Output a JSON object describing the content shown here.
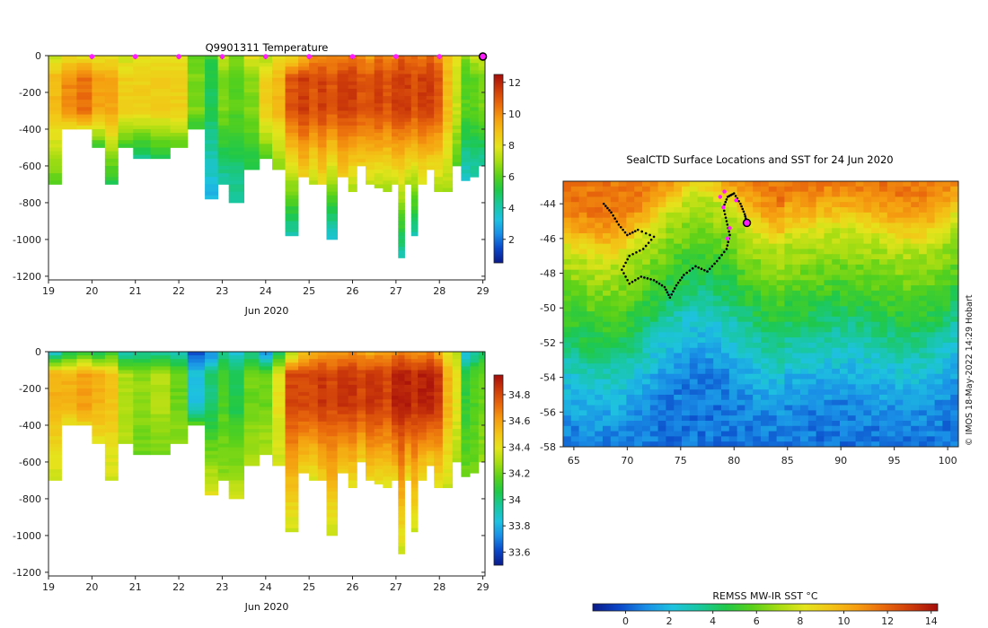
{
  "colors": {
    "jet": [
      "#0a1a8a",
      "#0a47c8",
      "#1a8ee6",
      "#1ec2e0",
      "#19c7a0",
      "#1fc84a",
      "#58d11a",
      "#a6dd12",
      "#e4e41c",
      "#f3c316",
      "#f59b10",
      "#e8670c",
      "#cc3a0a",
      "#a40d0a"
    ],
    "marker": "#ff1cff",
    "track": "#000000",
    "axis": "#222222"
  },
  "chart_data": [
    {
      "id": "temperature",
      "type": "heatmap",
      "title": "Q9901311  Temperature",
      "xlabel": "Jun 2020",
      "ylabel": "",
      "xlim": [
        19,
        29.05
      ],
      "ylim": [
        -1220,
        0
      ],
      "xticks": [
        19,
        20,
        21,
        22,
        23,
        24,
        25,
        26,
        27,
        28,
        29
      ],
      "yticks": [
        0,
        -200,
        -400,
        -600,
        -800,
        -1000,
        -1200
      ],
      "colorbar": {
        "min": 0.5,
        "max": 12.5,
        "ticks": [
          2,
          4,
          6,
          8,
          10,
          12
        ]
      },
      "surface_markers_x": [
        20,
        21,
        22,
        23,
        24,
        25,
        26,
        27,
        28
      ],
      "current_profile_x": 29,
      "profiles": [
        {
          "t": 19.1,
          "depth": 700,
          "surf": 7.5,
          "mid": 9.0,
          "deep": 6.0
        },
        {
          "t": 19.5,
          "depth": 400,
          "surf": 8.0,
          "mid": 10.0,
          "deep": 8.0
        },
        {
          "t": 19.8,
          "depth": 400,
          "surf": 8.0,
          "mid": 10.5,
          "deep": 8.0
        },
        {
          "t": 20.2,
          "depth": 500,
          "surf": 8.0,
          "mid": 9.5,
          "deep": 5.5
        },
        {
          "t": 20.4,
          "depth": 700,
          "surf": 8.0,
          "mid": 9.5,
          "deep": 5.0
        },
        {
          "t": 20.8,
          "depth": 500,
          "surf": 7.5,
          "mid": 8.5,
          "deep": 5.5
        },
        {
          "t": 21.1,
          "depth": 550,
          "surf": 8.0,
          "mid": 8.5,
          "deep": 4.5
        },
        {
          "t": 21.6,
          "depth": 550,
          "surf": 8.0,
          "mid": 8.5,
          "deep": 5.0
        },
        {
          "t": 22.0,
          "depth": 500,
          "surf": 8.0,
          "mid": 8.5,
          "deep": 6.0
        },
        {
          "t": 22.4,
          "depth": 400,
          "surf": 6.0,
          "mid": 6.5,
          "deep": 5.5
        },
        {
          "t": 22.8,
          "depth": 780,
          "surf": 5.5,
          "mid": 5.0,
          "deep": 3.0
        },
        {
          "t": 23.0,
          "depth": 700,
          "surf": 7.5,
          "mid": 6.5,
          "deep": 4.0
        },
        {
          "t": 23.3,
          "depth": 800,
          "surf": 6.5,
          "mid": 6.0,
          "deep": 4.0
        },
        {
          "t": 23.7,
          "depth": 620,
          "surf": 8.0,
          "mid": 6.5,
          "deep": 5.0
        },
        {
          "t": 24.0,
          "depth": 550,
          "surf": 7.0,
          "mid": 8.5,
          "deep": 6.0
        },
        {
          "t": 24.3,
          "depth": 620,
          "surf": 8.0,
          "mid": 9.0,
          "deep": 6.5
        },
        {
          "t": 24.6,
          "depth": 970,
          "surf": 8.0,
          "mid": 11.0,
          "deep": 4.0
        },
        {
          "t": 24.9,
          "depth": 650,
          "surf": 9.0,
          "mid": 11.5,
          "deep": 8.5
        },
        {
          "t": 25.1,
          "depth": 700,
          "surf": 10.0,
          "mid": 11.0,
          "deep": 7.0
        },
        {
          "t": 25.3,
          "depth": 700,
          "surf": 10.0,
          "mid": 11.5,
          "deep": 8.0
        },
        {
          "t": 25.5,
          "depth": 990,
          "surf": 10.0,
          "mid": 11.0,
          "deep": 3.5
        },
        {
          "t": 25.8,
          "depth": 650,
          "surf": 10.0,
          "mid": 11.5,
          "deep": 8.5
        },
        {
          "t": 26.0,
          "depth": 730,
          "surf": 10.5,
          "mid": 11.5,
          "deep": 7.0
        },
        {
          "t": 26.2,
          "depth": 600,
          "surf": 10.0,
          "mid": 11.0,
          "deep": 8.5
        },
        {
          "t": 26.4,
          "depth": 700,
          "surf": 9.5,
          "mid": 11.0,
          "deep": 7.5
        },
        {
          "t": 26.6,
          "depth": 720,
          "surf": 10.5,
          "mid": 11.5,
          "deep": 7.0
        },
        {
          "t": 26.8,
          "depth": 730,
          "surf": 10.0,
          "mid": 11.0,
          "deep": 7.0
        },
        {
          "t": 27.0,
          "depth": 700,
          "surf": 10.0,
          "mid": 11.5,
          "deep": 7.5
        },
        {
          "t": 27.1,
          "depth": 1090,
          "surf": 11.0,
          "mid": 11.5,
          "deep": 4.0
        },
        {
          "t": 27.3,
          "depth": 700,
          "surf": 10.5,
          "mid": 11.5,
          "deep": 7.0
        },
        {
          "t": 27.4,
          "depth": 980,
          "surf": 10.5,
          "mid": 11.0,
          "deep": 4.0
        },
        {
          "t": 27.6,
          "depth": 700,
          "surf": 10.0,
          "mid": 11.5,
          "deep": 7.5
        },
        {
          "t": 27.8,
          "depth": 620,
          "surf": 11.0,
          "mid": 11.5,
          "deep": 8.0
        },
        {
          "t": 27.95,
          "depth": 730,
          "surf": 10.0,
          "mid": 11.0,
          "deep": 7.0
        },
        {
          "t": 28.2,
          "depth": 730,
          "surf": 9.0,
          "mid": 9.0,
          "deep": 7.0
        },
        {
          "t": 28.4,
          "depth": 600,
          "surf": 8.0,
          "mid": 7.5,
          "deep": 6.0
        },
        {
          "t": 28.6,
          "depth": 680,
          "surf": 6.5,
          "mid": 6.0,
          "deep": 3.5
        },
        {
          "t": 28.8,
          "depth": 650,
          "surf": 7.5,
          "mid": 6.0,
          "deep": 4.0
        },
        {
          "t": 29.0,
          "depth": 600,
          "surf": 7.5,
          "mid": 6.5,
          "deep": 4.0
        }
      ]
    },
    {
      "id": "salinity",
      "type": "heatmap",
      "title": "",
      "xlabel": "Jun 2020",
      "ylabel": "",
      "xlim": [
        19,
        29.05
      ],
      "ylim": [
        -1220,
        0
      ],
      "xticks": [
        19,
        20,
        21,
        22,
        23,
        24,
        25,
        26,
        27,
        28,
        29
      ],
      "yticks": [
        0,
        -200,
        -400,
        -600,
        -800,
        -1000,
        -1200
      ],
      "colorbar": {
        "min": 33.5,
        "max": 34.95,
        "ticks": [
          33.6,
          33.8,
          34,
          34.2,
          34.4,
          34.6,
          34.8
        ]
      },
      "colorbar_labels": [
        "33.6",
        "33.8",
        "34",
        "34.2",
        "34.4",
        "34.6",
        "34.8"
      ],
      "profiles": [
        {
          "t": 19.1,
          "depth": 700,
          "surf": 33.85,
          "mid": 34.55,
          "deep": 34.35
        },
        {
          "t": 19.5,
          "depth": 400,
          "surf": 34.0,
          "mid": 34.55,
          "deep": 34.4
        },
        {
          "t": 19.8,
          "depth": 400,
          "surf": 34.1,
          "mid": 34.6,
          "deep": 34.45
        },
        {
          "t": 20.2,
          "depth": 500,
          "surf": 34.0,
          "mid": 34.55,
          "deep": 34.4
        },
        {
          "t": 20.4,
          "depth": 700,
          "surf": 34.1,
          "mid": 34.5,
          "deep": 34.35
        },
        {
          "t": 20.8,
          "depth": 500,
          "surf": 33.9,
          "mid": 34.3,
          "deep": 34.3
        },
        {
          "t": 21.1,
          "depth": 550,
          "surf": 33.95,
          "mid": 34.25,
          "deep": 34.2
        },
        {
          "t": 21.6,
          "depth": 550,
          "surf": 33.95,
          "mid": 34.3,
          "deep": 34.2
        },
        {
          "t": 22.0,
          "depth": 500,
          "surf": 33.9,
          "mid": 34.2,
          "deep": 34.25
        },
        {
          "t": 22.4,
          "depth": 400,
          "surf": 33.6,
          "mid": 33.85,
          "deep": 34.2
        },
        {
          "t": 22.8,
          "depth": 780,
          "surf": 33.7,
          "mid": 34.0,
          "deep": 34.4
        },
        {
          "t": 23.0,
          "depth": 700,
          "surf": 33.95,
          "mid": 34.15,
          "deep": 34.25
        },
        {
          "t": 23.3,
          "depth": 800,
          "surf": 33.85,
          "mid": 34.05,
          "deep": 34.35
        },
        {
          "t": 23.7,
          "depth": 620,
          "surf": 33.95,
          "mid": 34.2,
          "deep": 34.3
        },
        {
          "t": 24.0,
          "depth": 550,
          "surf": 33.7,
          "mid": 34.2,
          "deep": 34.3
        },
        {
          "t": 24.3,
          "depth": 620,
          "surf": 34.0,
          "mid": 34.4,
          "deep": 34.35
        },
        {
          "t": 24.6,
          "depth": 970,
          "surf": 34.25,
          "mid": 34.8,
          "deep": 34.35
        },
        {
          "t": 24.9,
          "depth": 650,
          "surf": 34.5,
          "mid": 34.8,
          "deep": 34.45
        },
        {
          "t": 25.1,
          "depth": 700,
          "surf": 34.55,
          "mid": 34.8,
          "deep": 34.35
        },
        {
          "t": 25.3,
          "depth": 700,
          "surf": 34.6,
          "mid": 34.85,
          "deep": 34.45
        },
        {
          "t": 25.5,
          "depth": 990,
          "surf": 34.6,
          "mid": 34.8,
          "deep": 34.35
        },
        {
          "t": 25.8,
          "depth": 650,
          "surf": 34.6,
          "mid": 34.85,
          "deep": 34.45
        },
        {
          "t": 26.0,
          "depth": 730,
          "surf": 34.65,
          "mid": 34.85,
          "deep": 34.4
        },
        {
          "t": 26.2,
          "depth": 600,
          "surf": 34.6,
          "mid": 34.8,
          "deep": 34.45
        },
        {
          "t": 26.4,
          "depth": 700,
          "surf": 34.55,
          "mid": 34.85,
          "deep": 34.45
        },
        {
          "t": 26.6,
          "depth": 720,
          "surf": 34.6,
          "mid": 34.85,
          "deep": 34.4
        },
        {
          "t": 26.8,
          "depth": 730,
          "surf": 34.6,
          "mid": 34.8,
          "deep": 34.4
        },
        {
          "t": 27.0,
          "depth": 700,
          "surf": 34.65,
          "mid": 34.9,
          "deep": 34.45
        },
        {
          "t": 27.1,
          "depth": 1090,
          "surf": 34.7,
          "mid": 34.9,
          "deep": 34.35
        },
        {
          "t": 27.3,
          "depth": 700,
          "surf": 34.65,
          "mid": 34.9,
          "deep": 34.4
        },
        {
          "t": 27.4,
          "depth": 980,
          "surf": 34.6,
          "mid": 34.85,
          "deep": 34.35
        },
        {
          "t": 27.6,
          "depth": 700,
          "surf": 34.6,
          "mid": 34.9,
          "deep": 34.4
        },
        {
          "t": 27.8,
          "depth": 620,
          "surf": 34.7,
          "mid": 34.9,
          "deep": 34.45
        },
        {
          "t": 27.95,
          "depth": 730,
          "surf": 34.55,
          "mid": 34.85,
          "deep": 34.4
        },
        {
          "t": 28.2,
          "depth": 730,
          "surf": 34.4,
          "mid": 34.55,
          "deep": 34.35
        },
        {
          "t": 28.4,
          "depth": 600,
          "surf": 34.3,
          "mid": 34.4,
          "deep": 34.3
        },
        {
          "t": 28.6,
          "depth": 680,
          "surf": 33.8,
          "mid": 34.1,
          "deep": 34.2
        },
        {
          "t": 28.8,
          "depth": 650,
          "surf": 33.9,
          "mid": 34.15,
          "deep": 34.2
        },
        {
          "t": 29.0,
          "depth": 600,
          "surf": 34.0,
          "mid": 34.2,
          "deep": 34.25
        }
      ]
    },
    {
      "id": "sst-map",
      "type": "heatmap",
      "title": "SealCTD Surface Locations and SST for 24 Jun 2020",
      "xlabel": "",
      "ylabel": "",
      "xlim": [
        64,
        101
      ],
      "ylim": [
        -58,
        -42.7
      ],
      "xticks": [
        65,
        70,
        75,
        80,
        85,
        90,
        95,
        100
      ],
      "yticks": [
        -44,
        -46,
        -48,
        -50,
        -52,
        -54,
        -56,
        -58
      ],
      "colorbar": {
        "label": "REMSS MW-IR SST °C",
        "min": -1.5,
        "max": 14.3,
        "ticks": [
          0,
          2,
          4,
          6,
          8,
          10,
          12,
          14
        ],
        "orientation": "horizontal"
      },
      "credit": "© IMOS 18-May-2022 14:29 Hobart",
      "sst_profile_by_lat": [
        {
          "lat": -43,
          "sst": 11.5
        },
        {
          "lat": -44.5,
          "sst": 10.0
        },
        {
          "lat": -46,
          "sst": 7.5
        },
        {
          "lat": -47.5,
          "sst": 6.5
        },
        {
          "lat": -49,
          "sst": 5.5
        },
        {
          "lat": -50.5,
          "sst": 4.5
        },
        {
          "lat": -52,
          "sst": 3.2
        },
        {
          "lat": -54,
          "sst": 1.8
        },
        {
          "lat": -56,
          "sst": 0.8
        },
        {
          "lat": -58,
          "sst": 0.5
        }
      ],
      "track": [
        [
          67.8,
          -44.0
        ],
        [
          68.5,
          -44.5
        ],
        [
          69.2,
          -45.2
        ],
        [
          70.0,
          -45.8
        ],
        [
          71.0,
          -45.5
        ],
        [
          72.5,
          -45.9
        ],
        [
          71.5,
          -46.6
        ],
        [
          70.2,
          -47.0
        ],
        [
          69.5,
          -47.8
        ],
        [
          70.2,
          -48.6
        ],
        [
          71.3,
          -48.2
        ],
        [
          72.5,
          -48.4
        ],
        [
          73.5,
          -48.8
        ],
        [
          74.0,
          -49.4
        ],
        [
          74.6,
          -48.7
        ],
        [
          75.3,
          -48.1
        ],
        [
          76.4,
          -47.6
        ],
        [
          77.5,
          -47.9
        ],
        [
          78.4,
          -47.3
        ],
        [
          79.3,
          -46.6
        ],
        [
          79.6,
          -45.8
        ],
        [
          79.3,
          -45.0
        ],
        [
          79.0,
          -44.2
        ],
        [
          79.4,
          -43.6
        ],
        [
          80.0,
          -43.4
        ],
        [
          80.6,
          -44.0
        ],
        [
          81.0,
          -44.6
        ],
        [
          81.2,
          -45.1
        ]
      ],
      "magenta_points": [
        [
          78.7,
          -43.6
        ],
        [
          79.0,
          -44.2
        ],
        [
          79.6,
          -45.4
        ],
        [
          79.4,
          -46.0
        ],
        [
          79.1,
          -43.3
        ],
        [
          80.2,
          -43.8
        ]
      ],
      "current_location": [
        81.2,
        -45.1
      ]
    }
  ]
}
